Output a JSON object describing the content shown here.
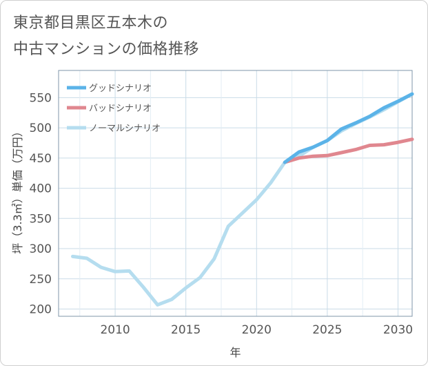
{
  "title": {
    "line1": "東京都目黒区五本木の",
    "line2": "中古マンションの価格推移"
  },
  "colors": {
    "background": "#ffffff",
    "grid": "#c9dbe7",
    "axis": "#7f96a8",
    "text": "#555555"
  },
  "chart_data": {
    "type": "line",
    "xlabel": "年",
    "ylabel": "坪（3.3㎡）単価（万円）",
    "xlim": [
      2006,
      2031
    ],
    "ylim": [
      188,
      595
    ],
    "x_ticks": [
      2010,
      2015,
      2020,
      2025,
      2030
    ],
    "y_ticks": [
      200,
      250,
      300,
      350,
      400,
      450,
      500,
      550
    ],
    "grid": true,
    "legend_position": "top-left",
    "series": [
      {
        "name": "グッドシナリオ",
        "color": "#5bb3e8",
        "x": [
          2022,
          2023,
          2024,
          2025,
          2026,
          2027,
          2028,
          2029,
          2030,
          2031
        ],
        "y": [
          443,
          460,
          468,
          479,
          498,
          508,
          519,
          533,
          544,
          556
        ]
      },
      {
        "name": "バッドシナリオ",
        "color": "#e0878f",
        "x": [
          2022,
          2023,
          2024,
          2025,
          2026,
          2027,
          2028,
          2029,
          2030,
          2031
        ],
        "y": [
          443,
          450,
          453,
          454,
          459,
          464,
          471,
          472,
          476,
          481
        ]
      },
      {
        "name": "ノーマルシナリオ",
        "color": "#b5ddef",
        "x": [
          2007,
          2008,
          2009,
          2010,
          2011,
          2012,
          2013,
          2014,
          2015,
          2016,
          2017,
          2018,
          2019,
          2020,
          2021,
          2022,
          2023,
          2024,
          2025,
          2026,
          2027,
          2028,
          2029,
          2030,
          2031
        ],
        "y": [
          287,
          284,
          269,
          262,
          263,
          236,
          207,
          216,
          235,
          252,
          283,
          337,
          359,
          381,
          409,
          443,
          453,
          468,
          479,
          495,
          507,
          518,
          530,
          543,
          556
        ]
      }
    ]
  }
}
